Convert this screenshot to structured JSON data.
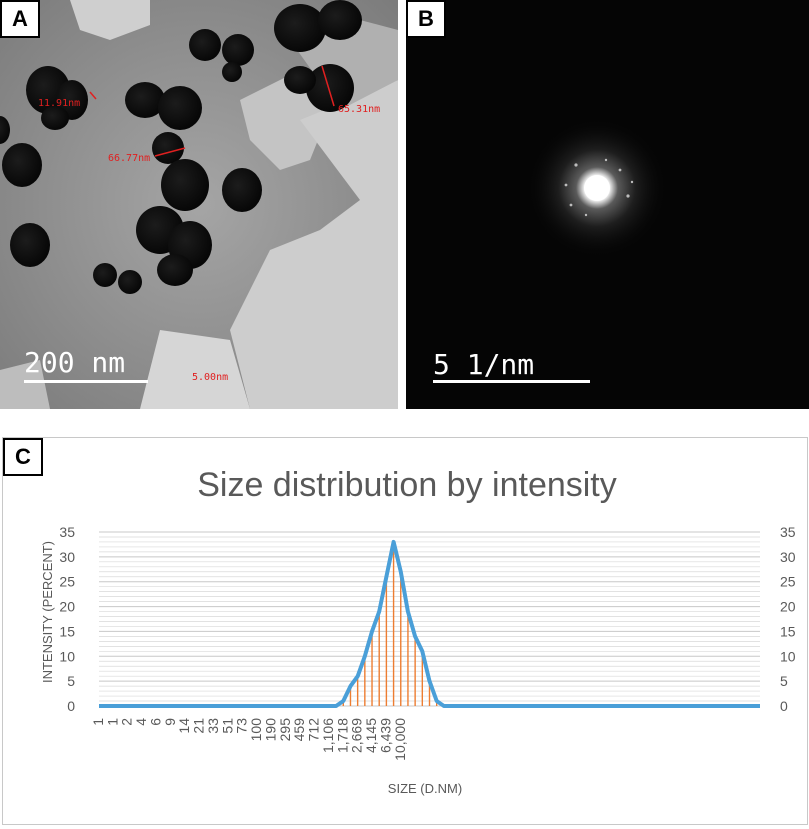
{
  "panels": {
    "a": {
      "label": "A",
      "scale_bar": "200 nm",
      "measurements": [
        "11.91nm",
        "65.31nm",
        "66.77nm",
        "5.00nm"
      ]
    },
    "b": {
      "label": "B",
      "scale_bar": "5 1/nm"
    },
    "c": {
      "label": "C"
    }
  },
  "colors": {
    "line": "#4a9fd8",
    "drop": "#ed7d31",
    "grid": "#d9d9d9",
    "axis_text": "#595959"
  },
  "chart_data": {
    "type": "line",
    "title": "Size distribution by intensity",
    "xlabel": "SIZE (D.NM)",
    "ylabel": "INTENSITY (PERCENT)",
    "ylim": [
      0,
      35
    ],
    "y_ticks": [
      0,
      5,
      10,
      15,
      20,
      25,
      30,
      35
    ],
    "y_minor_step": 1,
    "grid": true,
    "secondary_y_axis": true,
    "x_tick_labels": [
      "1",
      "1",
      "2",
      "4",
      "6",
      "9",
      "14",
      "21",
      "33",
      "51",
      "73",
      "100",
      "190",
      "295",
      "459",
      "712",
      "1,106",
      "1,718",
      "2,669",
      "4,145",
      "6,439",
      "10,000"
    ],
    "x_tick_every": 2,
    "drop_lines": true,
    "series": [
      {
        "values": [
          0,
          0,
          0,
          0,
          0,
          0,
          0,
          0,
          0,
          0,
          0,
          0,
          0,
          0,
          0,
          0,
          0,
          0,
          0,
          0,
          0,
          0,
          0,
          0,
          0,
          0,
          0,
          0,
          0,
          0,
          0,
          0,
          0,
          0,
          1,
          4,
          6,
          10,
          15,
          19,
          26,
          33,
          27,
          19,
          14,
          11,
          5,
          1,
          0,
          0,
          0,
          0,
          0,
          0,
          0,
          0,
          0,
          0,
          0,
          0,
          0,
          0,
          0,
          0,
          0,
          0,
          0,
          0,
          0,
          0,
          0,
          0,
          0,
          0,
          0,
          0,
          0,
          0,
          0,
          0,
          0,
          0,
          0,
          0,
          0,
          0,
          0,
          0,
          0,
          0,
          0,
          0,
          0
        ]
      }
    ]
  }
}
